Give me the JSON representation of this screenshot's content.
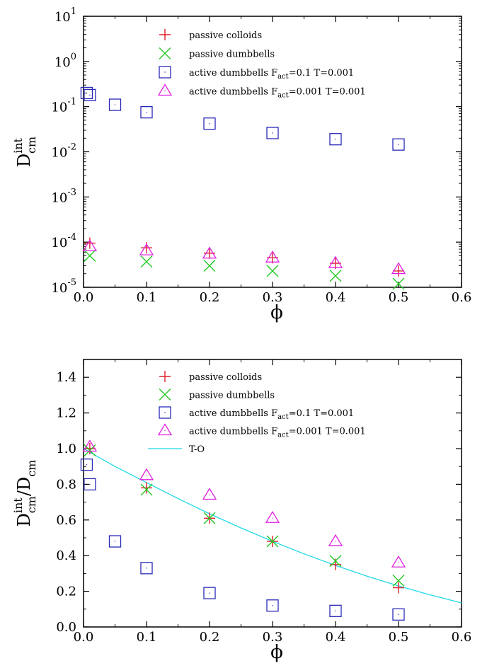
{
  "chart_data": [
    {
      "type": "scatter",
      "title": "",
      "xlabel": "ϕ",
      "ylabel_main": "D",
      "ylabel_sup": "int",
      "ylabel_sub": "cm",
      "xlim": [
        0,
        0.6
      ],
      "ylim": [
        1e-05,
        10
      ],
      "yscale": "log",
      "xticks": [
        "0.0",
        "0.1",
        "0.2",
        "0.3",
        "0.4",
        "0.5",
        "0.6"
      ],
      "yticks": [
        {
          "base": "10",
          "exp": "-5",
          "value": 1e-05
        },
        {
          "base": "10",
          "exp": "-4",
          "value": 0.0001
        },
        {
          "base": "10",
          "exp": "-3",
          "value": 0.001
        },
        {
          "base": "10",
          "exp": "-2",
          "value": 0.01
        },
        {
          "base": "10",
          "exp": "-1",
          "value": 0.1
        },
        {
          "base": "10",
          "exp": "0",
          "value": 1
        },
        {
          "base": "10",
          "exp": "1",
          "value": 10
        }
      ],
      "legend_position": "top-center",
      "series": [
        {
          "name": "passive colloids",
          "marker": "plus",
          "color": "#e0202a",
          "x": [
            0.01,
            0.1,
            0.2,
            0.3,
            0.4,
            0.5
          ],
          "y": [
            9.5e-05,
            7.5e-05,
            5.7e-05,
            4.5e-05,
            3.4e-05,
            2.3e-05
          ]
        },
        {
          "name": "passive dumbbells",
          "marker": "cross",
          "color": "#22c922",
          "x": [
            0.01,
            0.1,
            0.2,
            0.3,
            0.4,
            0.5
          ],
          "y": [
            5e-05,
            3.7e-05,
            3e-05,
            2.3e-05,
            1.8e-05,
            1.2e-05
          ]
        },
        {
          "name": "active dumbbells",
          "legend_f": "0.1",
          "legend_t": "0.001",
          "marker": "square",
          "color": "#2a2ab8",
          "x": [
            0.005,
            0.01,
            0.05,
            0.1,
            0.2,
            0.3,
            0.4,
            0.5
          ],
          "y": [
            0.2,
            0.18,
            0.11,
            0.075,
            0.042,
            0.026,
            0.019,
            0.0145
          ]
        },
        {
          "name": "active dumbbells",
          "legend_f": "0.001",
          "legend_t": "0.001",
          "marker": "triangle",
          "color": "#e020e0",
          "x": [
            0.01,
            0.1,
            0.2,
            0.3,
            0.4,
            0.5
          ],
          "y": [
            8e-05,
            6.5e-05,
            5.5e-05,
            4.5e-05,
            3.4e-05,
            2.5e-05
          ]
        }
      ]
    },
    {
      "type": "scatter",
      "title": "",
      "xlabel": "ϕ",
      "ylabel_main": "D",
      "ylabel_sup": "int",
      "ylabel_sub": "cm",
      "ylabel_denom": "D",
      "ylabel_denom_sub": "cm",
      "xlim": [
        0,
        0.6
      ],
      "ylim": [
        0,
        1.5
      ],
      "yscale": "linear",
      "xticks": [
        "0.0",
        "0.1",
        "0.2",
        "0.3",
        "0.4",
        "0.5",
        "0.6"
      ],
      "yticks": [
        "0.0",
        "0.2",
        "0.4",
        "0.6",
        "0.8",
        "1.0",
        "1.2",
        "1.4"
      ],
      "legend_position": "top-center",
      "series": [
        {
          "name": "passive colloids",
          "marker": "plus",
          "color": "#e0202a",
          "x": [
            0.01,
            0.1,
            0.2,
            0.3,
            0.4,
            0.5
          ],
          "y": [
            1.0,
            0.78,
            0.61,
            0.48,
            0.35,
            0.22
          ]
        },
        {
          "name": "passive dumbbells",
          "marker": "cross",
          "color": "#22c922",
          "x": [
            0.01,
            0.1,
            0.2,
            0.3,
            0.4,
            0.5
          ],
          "y": [
            0.99,
            0.77,
            0.61,
            0.48,
            0.37,
            0.26
          ]
        },
        {
          "name": "active dumbbells",
          "legend_f": "0.1",
          "legend_t": "0.001",
          "marker": "square",
          "color": "#2a2ab8",
          "x": [
            0.005,
            0.01,
            0.05,
            0.1,
            0.2,
            0.3,
            0.4,
            0.5
          ],
          "y": [
            0.91,
            0.8,
            0.48,
            0.33,
            0.19,
            0.12,
            0.09,
            0.07
          ]
        },
        {
          "name": "active dumbbells",
          "legend_f": "0.001",
          "legend_t": "0.001",
          "marker": "triangle",
          "color": "#e020e0",
          "x": [
            0.01,
            0.1,
            0.2,
            0.3,
            0.4,
            0.5
          ],
          "y": [
            1.01,
            0.85,
            0.74,
            0.61,
            0.48,
            0.36
          ]
        },
        {
          "name": "T-O",
          "marker": "line",
          "color": "#22d8e8",
          "x": [
            0.0,
            0.05,
            0.1,
            0.15,
            0.2,
            0.25,
            0.3,
            0.35,
            0.4,
            0.45,
            0.5,
            0.55,
            0.6
          ],
          "y": [
            1.0,
            0.9,
            0.81,
            0.72,
            0.635,
            0.555,
            0.48,
            0.41,
            0.345,
            0.285,
            0.23,
            0.18,
            0.135
          ]
        }
      ]
    }
  ]
}
